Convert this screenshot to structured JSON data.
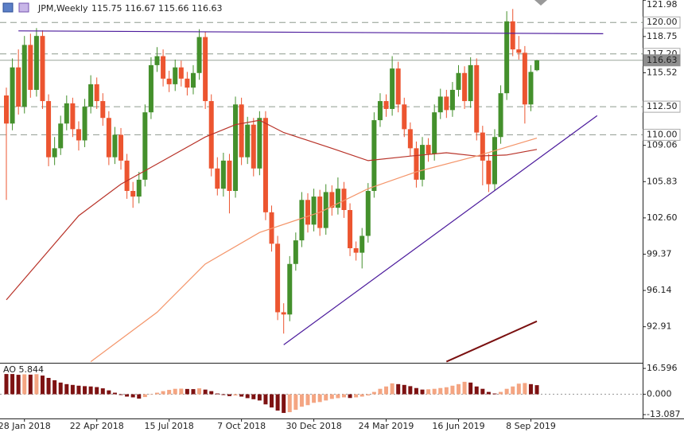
{
  "chart_data": {
    "type": "candlestick",
    "title": "JPM,Weekly",
    "categories": [
      null,
      null,
      null,
      "28 Jan 2018",
      null,
      null,
      null,
      null,
      null,
      null,
      null,
      null,
      null,
      null,
      null,
      "22 Apr 2018",
      null,
      null,
      null,
      null,
      null,
      null,
      null,
      null,
      null,
      null,
      null,
      "15 Jul 2018",
      null,
      null,
      null,
      null,
      null,
      null,
      null,
      null,
      null,
      null,
      null,
      "7 Oct 2018",
      null,
      null,
      null,
      null,
      null,
      null,
      null,
      null,
      null,
      null,
      null,
      "30 Dec 2018",
      null,
      null,
      null,
      null,
      null,
      null,
      null,
      null,
      null,
      null,
      null,
      "24 Mar 2019",
      null,
      null,
      null,
      null,
      null,
      null,
      null,
      null,
      null,
      null,
      null,
      "16 Jun 2019",
      null,
      null,
      null,
      null,
      null,
      null,
      null,
      null,
      null,
      null,
      null,
      "8 Sep 2019",
      null
    ],
    "open": [
      113.5,
      111.0,
      116.0,
      112.5,
      118.0,
      114.0,
      118.8,
      113.0,
      108.0,
      108.8,
      111.0,
      112.8,
      110.5,
      109.5,
      112.5,
      114.5,
      113.0,
      111.5,
      108.0,
      110.0,
      107.7,
      105.0,
      104.5,
      106.0,
      112.0,
      116.2,
      117.0,
      115.0,
      114.5,
      116.0,
      115.0,
      114.2,
      115.5,
      118.7,
      113.0,
      107.0,
      105.2,
      107.7,
      105.0,
      112.7,
      108.0,
      110.9,
      107.0,
      111.5,
      103.1,
      100.3,
      94.2,
      94.0,
      98.5,
      100.6,
      104.2,
      102.0,
      104.5,
      101.7,
      104.9,
      103.5,
      105.2,
      103.3,
      99.9,
      99.5,
      101.0,
      105.0,
      111.3,
      113.0,
      112.3,
      115.9,
      112.7,
      110.5,
      108.8,
      106.0,
      109.1,
      108.3,
      112.0,
      113.4,
      112.2,
      114.0,
      115.5,
      113.0,
      116.2,
      110.2,
      107.7,
      105.6,
      109.8,
      113.7,
      120.1,
      117.6,
      117.3,
      112.7,
      115.75
    ],
    "high": [
      114.2,
      116.8,
      117.6,
      118.8,
      119.0,
      119.5,
      119.3,
      113.6,
      109.8,
      111.7,
      113.5,
      113.3,
      111.2,
      113.2,
      115.3,
      115.1,
      113.7,
      112.1,
      110.7,
      110.6,
      108.3,
      105.8,
      106.7,
      112.7,
      116.9,
      117.8,
      117.6,
      115.7,
      116.7,
      116.6,
      115.6,
      116.2,
      119.4,
      119.2,
      113.6,
      108.0,
      108.4,
      108.3,
      113.4,
      113.3,
      111.6,
      111.5,
      112.1,
      112.1,
      103.7,
      101.0,
      95.0,
      99.2,
      101.3,
      104.9,
      104.8,
      105.2,
      105.1,
      105.6,
      105.5,
      106.2,
      105.8,
      103.9,
      100.5,
      101.7,
      105.7,
      112.0,
      113.7,
      113.6,
      117.0,
      116.5,
      113.3,
      111.1,
      109.4,
      109.8,
      109.7,
      112.7,
      114.1,
      114.0,
      114.7,
      116.2,
      116.1,
      116.9,
      116.8,
      110.8,
      108.3,
      110.5,
      114.4,
      121.0,
      121.2,
      118.8,
      117.9,
      116.2,
      116.67
    ],
    "low": [
      104.2,
      110.4,
      111.8,
      111.9,
      113.3,
      113.4,
      112.3,
      107.2,
      107.3,
      108.2,
      110.4,
      109.8,
      108.6,
      108.9,
      111.9,
      112.3,
      110.8,
      107.3,
      107.4,
      106.9,
      104.3,
      103.5,
      103.9,
      105.4,
      111.4,
      115.6,
      114.3,
      113.8,
      113.9,
      114.3,
      113.5,
      113.6,
      114.9,
      112.3,
      106.3,
      104.6,
      104.5,
      103.0,
      104.4,
      107.3,
      107.4,
      106.3,
      106.4,
      102.4,
      99.6,
      93.5,
      92.3,
      93.4,
      97.9,
      100.0,
      101.3,
      101.4,
      101.0,
      101.1,
      102.8,
      102.9,
      102.6,
      99.2,
      98.8,
      98.1,
      100.4,
      104.4,
      110.7,
      111.6,
      111.7,
      112.0,
      109.8,
      108.1,
      105.3,
      105.4,
      107.6,
      107.7,
      111.4,
      111.5,
      111.6,
      113.4,
      112.3,
      112.4,
      109.5,
      105.5,
      104.9,
      105.0,
      109.2,
      113.1,
      117.0,
      116.7,
      111.0,
      112.1,
      115.66
    ],
    "close": [
      111.0,
      116.0,
      112.5,
      118.0,
      114.0,
      118.8,
      113.0,
      108.0,
      108.8,
      111.0,
      112.8,
      110.5,
      109.5,
      112.5,
      114.5,
      113.0,
      111.5,
      108.0,
      110.0,
      107.7,
      105.0,
      104.5,
      106.0,
      112.0,
      116.2,
      117.0,
      115.0,
      114.5,
      116.0,
      115.0,
      114.2,
      115.5,
      118.7,
      113.0,
      107.0,
      105.2,
      107.7,
      105.0,
      112.7,
      108.0,
      110.9,
      107.0,
      111.5,
      103.1,
      100.3,
      94.2,
      94.0,
      98.5,
      100.6,
      104.2,
      102.0,
      104.5,
      101.7,
      104.9,
      103.5,
      105.2,
      103.3,
      99.9,
      99.5,
      101.0,
      105.0,
      111.3,
      113.0,
      112.3,
      115.9,
      112.7,
      110.5,
      108.8,
      106.0,
      109.1,
      108.3,
      112.0,
      113.4,
      112.2,
      114.0,
      115.5,
      113.0,
      116.2,
      110.2,
      107.7,
      105.6,
      109.8,
      113.7,
      120.1,
      117.6,
      117.3,
      112.7,
      115.6,
      116.63
    ],
    "up_color": "#44902c",
    "down_color": "#ec5530",
    "ylim": [
      89.7,
      122.0
    ],
    "yticks": [
      121.98,
      118.75,
      115.52,
      109.06,
      105.83,
      {
        "value": 102.6,
        "label": "102.60"
      },
      99.37,
      96.14,
      92.91
    ],
    "levels": [
      {
        "value": 120,
        "label": "120.00"
      },
      {
        "value": 117.2,
        "label": "117.20"
      },
      116.63,
      {
        "value": 112.5,
        "label": "112.50"
      },
      {
        "value": 110,
        "label": "110.00"
      }
    ],
    "level_styles": [
      "dashed",
      "dashed",
      "solid",
      "dashed",
      "dashed"
    ],
    "overlays": [
      {
        "color": "#b83228",
        "x": [
          0,
          12,
          19,
          25,
          33,
          38,
          42,
          46,
          54,
          60,
          67,
          73,
          78,
          83,
          88
        ],
        "values": [
          95.3,
          102.8,
          105.6,
          107.4,
          109.8,
          110.9,
          111.3,
          110.2,
          108.8,
          107.7,
          108.1,
          108.4,
          108.1,
          108.2,
          108.7
        ]
      },
      {
        "color": "#f4956a",
        "x": [
          14,
          25,
          33,
          42,
          52,
          60,
          68,
          78,
          88
        ],
        "values": [
          89.8,
          94.2,
          98.5,
          101.3,
          103.1,
          105.2,
          106.7,
          108.1,
          109.7
        ]
      },
      {
        "color": "#7a1010",
        "x": [
          73,
          88
        ],
        "values": [
          89.8,
          93.4
        ]
      },
      {
        "color": "#4b1a9c",
        "x": [
          46,
          98
        ],
        "values": [
          91.3,
          111.7
        ]
      },
      {
        "color": "#4b1a9c",
        "x": [
          2,
          99
        ],
        "values": [
          119.25,
          119.0
        ]
      }
    ],
    "ao": {
      "label": "AO",
      "values": [
        13,
        13,
        12.5,
        12.8,
        12.6,
        12.9,
        12.0,
        10.5,
        9.0,
        7.5,
        6.5,
        6.0,
        5.5,
        5.2,
        5.0,
        4.6,
        3.8,
        2.5,
        1.0,
        -0.5,
        -1.5,
        -2.0,
        -2.8,
        -1.8,
        -0.3,
        1.0,
        2.0,
        2.8,
        3.5,
        3.6,
        3.4,
        3.3,
        3.8,
        3.0,
        2.0,
        0.5,
        -0.5,
        -1.2,
        -0.8,
        -1.5,
        -2.5,
        -3.2,
        -4.0,
        -6.5,
        -8.5,
        -10.5,
        -12.0,
        -11.5,
        -10.0,
        -8.0,
        -7.0,
        -5.5,
        -5.0,
        -4.0,
        -3.0,
        -2.5,
        -2.0,
        -2.4,
        -2.0,
        -1.5,
        -0.8,
        1.5,
        3.5,
        5.0,
        7.0,
        6.5,
        6.0,
        5.2,
        4.0,
        3.0,
        3.2,
        3.5,
        4.0,
        4.5,
        5.5,
        6.5,
        8.0,
        7.5,
        5.0,
        3.5,
        1.5,
        0.5,
        1.5,
        3.5,
        5.0,
        6.8,
        7.2,
        6.5,
        5.844
      ],
      "up_color": "#f4a582",
      "down_color": "#7e1212",
      "ylim": [
        -15.56,
        19.7
      ],
      "yticks": [
        16.596,
        {
          "value": 0,
          "label": "0.000"
        },
        -13.087
      ]
    }
  }
}
